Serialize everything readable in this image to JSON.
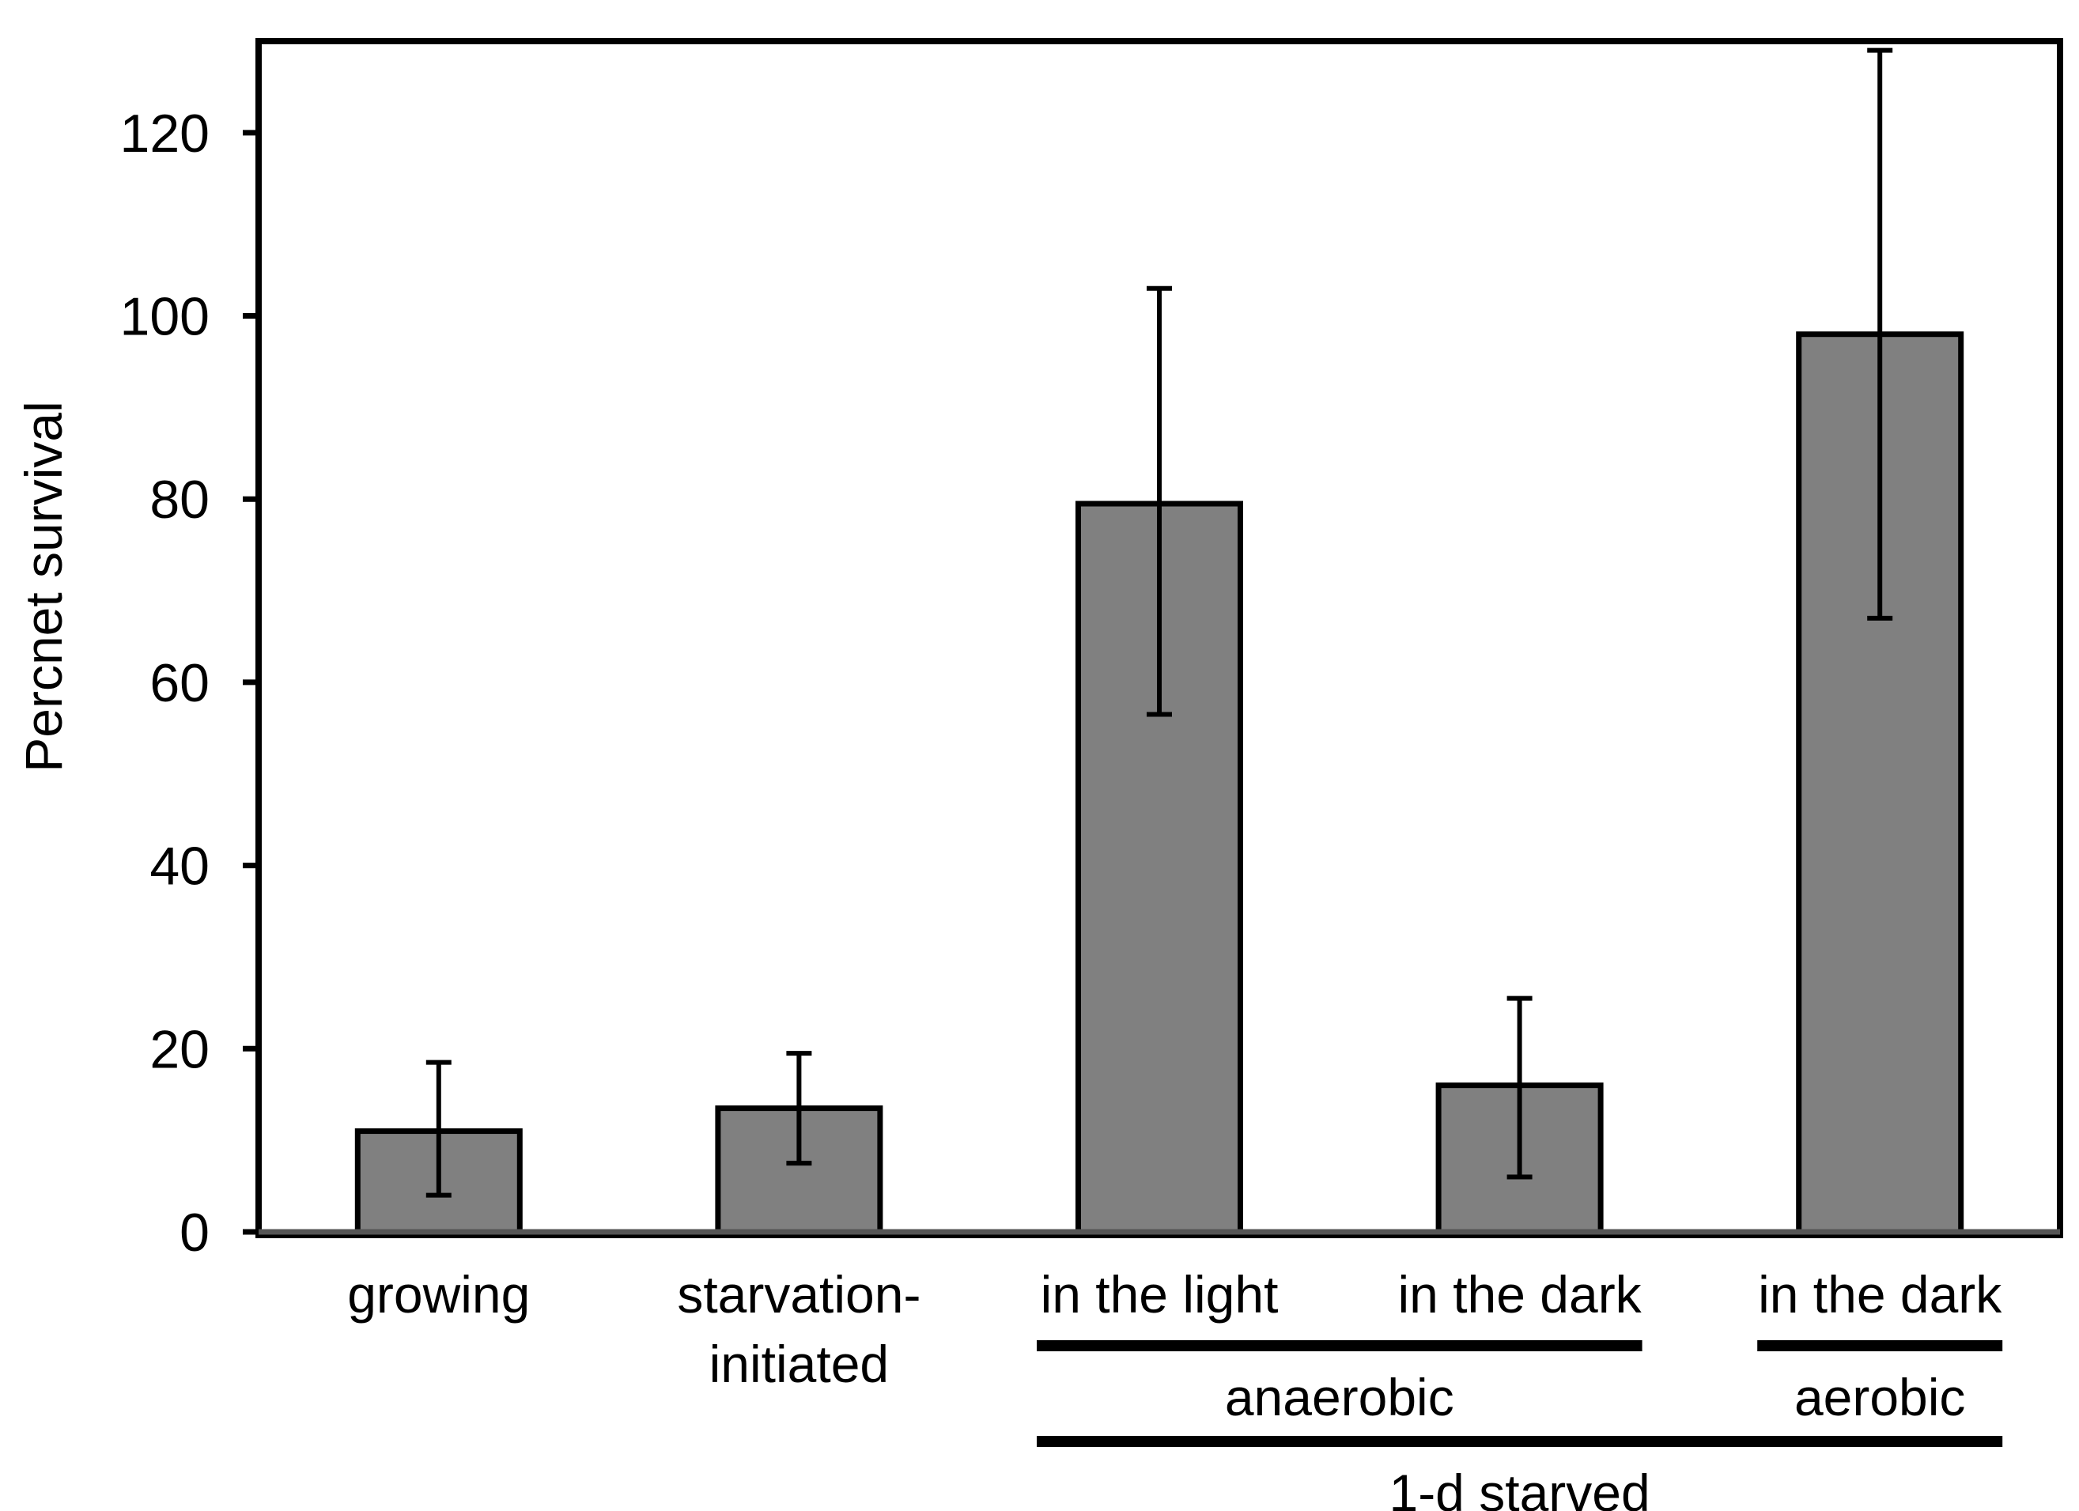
{
  "colors": {
    "bar_fill": "#808080",
    "axis": "#000000",
    "background": "#ffffff"
  },
  "chart_data": {
    "type": "bar",
    "title": "",
    "xlabel": "",
    "ylabel": "Percnet survival",
    "ylim": [
      0,
      130
    ],
    "yticks": [
      0,
      20,
      40,
      60,
      80,
      100,
      120
    ],
    "grid": false,
    "categories": [
      "growing",
      "starvation-\ninitiated",
      "in the light",
      "in the dark",
      "in the dark"
    ],
    "values": [
      11,
      13.5,
      79.5,
      16,
      98
    ],
    "error_low": [
      4,
      7.5,
      56.5,
      6,
      67
    ],
    "error_high": [
      18.5,
      19.5,
      103,
      25.5,
      129
    ],
    "groups": [
      {
        "label": "anaerobic",
        "from": 2,
        "to": 3
      },
      {
        "label": "aerobic",
        "from": 4,
        "to": 4
      },
      {
        "label": "1-d starved",
        "from": 2,
        "to": 4
      }
    ]
  }
}
